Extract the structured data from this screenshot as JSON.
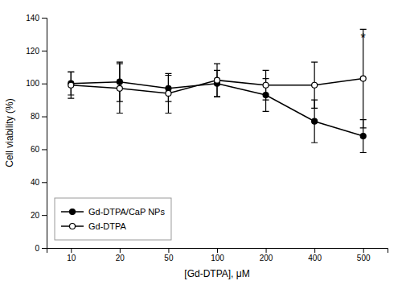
{
  "chart_data": {
    "type": "line",
    "x_label": "[Gd-DTPA], μM",
    "y_label": "Cell viability (%)",
    "categories": [
      "10",
      "20",
      "50",
      "100",
      "200",
      "400",
      "500"
    ],
    "series": [
      {
        "name": "Gd-DTPA/CaP NPs",
        "color": "#000000",
        "marker": "circle",
        "values": [
          100,
          101,
          97,
          100,
          93,
          77,
          68
        ],
        "errors": [
          7,
          12,
          8,
          8,
          10,
          13,
          10
        ]
      },
      {
        "name": "Gd-DTPA",
        "color": "#000000",
        "marker": "open-circle",
        "values": [
          99,
          97,
          94,
          102,
          99,
          99,
          103
        ],
        "errors": [
          8,
          15,
          12,
          10,
          9,
          14,
          30
        ]
      }
    ],
    "ylim": [
      0,
      140
    ],
    "yticks": [
      0,
      20,
      40,
      60,
      80,
      100,
      120,
      140
    ],
    "annotations": [
      {
        "text": "*",
        "x": "500",
        "y": 125
      }
    ],
    "legend": "lower left",
    "grid": false
  }
}
